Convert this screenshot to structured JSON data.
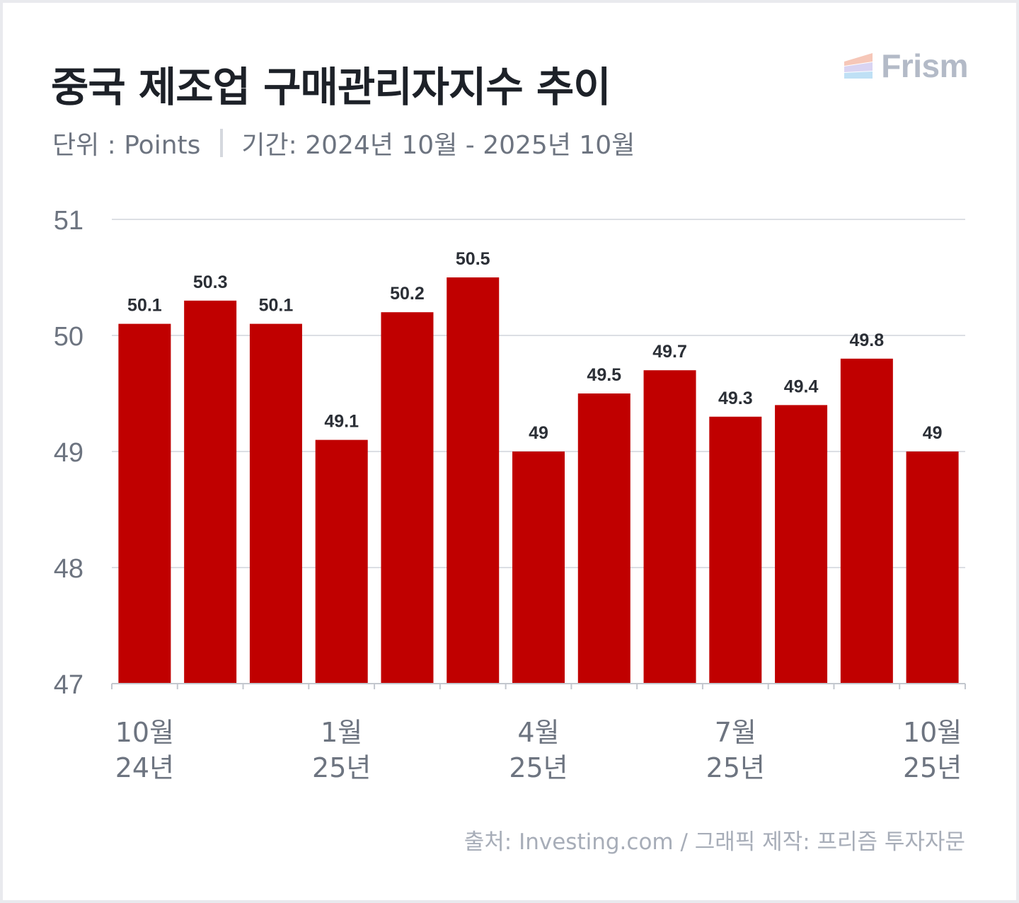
{
  "header": {
    "title": "중국 제조업 구매관리자지수 추이",
    "logo_text": "Frism",
    "unit": "단위 : Points",
    "period": "기간: 2024년 10월 - 2025년 10월"
  },
  "footer": {
    "source": "출처: Investing.com / 그래픽 제작: 프리즘 투자자문"
  },
  "colors": {
    "bar": "#c00000",
    "grid": "#dcdfe4",
    "axis_text": "#6d7480",
    "value_label": "#2b2f36"
  },
  "chart_data": {
    "type": "bar",
    "title": "중국 제조업 구매관리자지수 추이",
    "categories": [
      "2024-10",
      "2024-11",
      "2024-12",
      "2025-01",
      "2025-02",
      "2025-03",
      "2025-04",
      "2025-05",
      "2025-06",
      "2025-07",
      "2025-08",
      "2025-09",
      "2025-10"
    ],
    "values": [
      50.1,
      50.3,
      50.1,
      49.1,
      50.2,
      50.5,
      49,
      49.5,
      49.7,
      49.3,
      49.4,
      49.8,
      49
    ],
    "value_labels": [
      "50.1",
      "50.3",
      "50.1",
      "49.1",
      "50.2",
      "50.5",
      "49",
      "49.5",
      "49.7",
      "49.3",
      "49.4",
      "49.8",
      "49"
    ],
    "ylim": [
      47,
      51
    ],
    "yticks": [
      47,
      48,
      49,
      50,
      51
    ],
    "x_tick_labels": [
      {
        "index": 0,
        "month": "10월",
        "year": "24년"
      },
      {
        "index": 3,
        "month": "1월",
        "year": "25년"
      },
      {
        "index": 6,
        "month": "4월",
        "year": "25년"
      },
      {
        "index": 9,
        "month": "7월",
        "year": "25년"
      },
      {
        "index": 12,
        "month": "10월",
        "year": "25년"
      }
    ],
    "grid": true,
    "legend": "none"
  }
}
